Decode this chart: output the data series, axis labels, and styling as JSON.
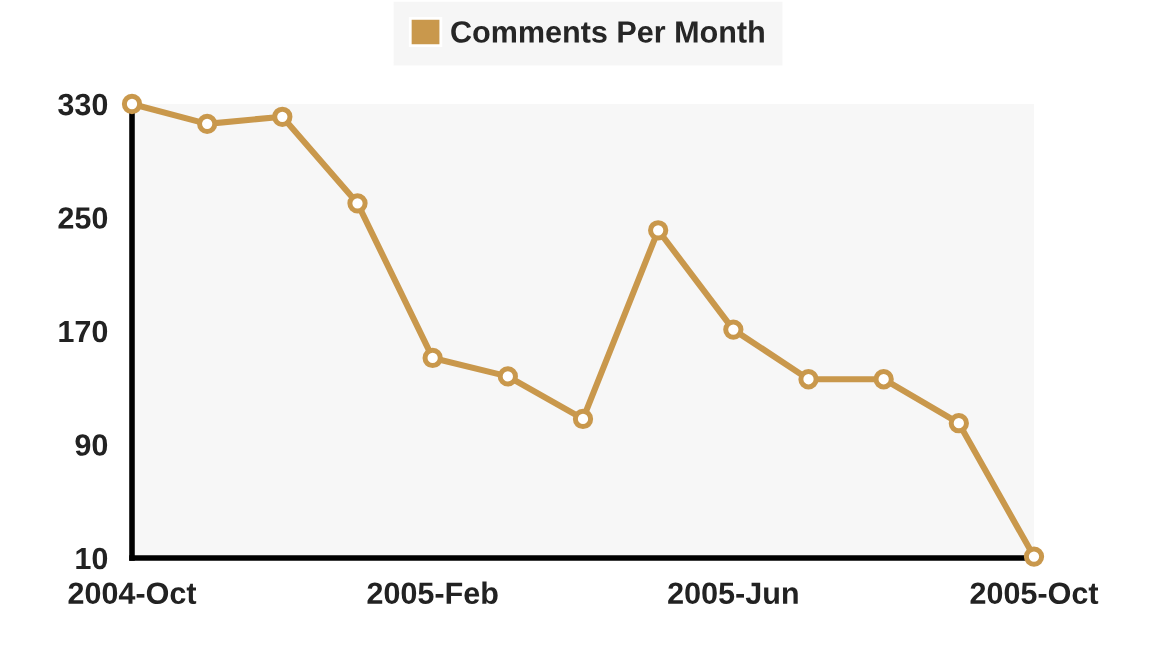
{
  "chart_data": {
    "type": "line",
    "categories": [
      "2004-Oct",
      null,
      null,
      null,
      "2005-Feb",
      null,
      null,
      null,
      "2005-Jun",
      null,
      null,
      null,
      "2005-Oct"
    ],
    "series": [
      {
        "name": "Comments Per Month",
        "color": "#c9984c",
        "values": [
          330,
          316,
          321,
          260,
          151,
          138,
          108,
          241,
          171,
          136,
          136,
          105,
          11
        ]
      }
    ],
    "ylim": [
      10,
      330
    ],
    "yticks": [
      10,
      90,
      170,
      250,
      330
    ],
    "grid": false,
    "legend": "top",
    "marker": "circle",
    "line_style": "solid"
  }
}
